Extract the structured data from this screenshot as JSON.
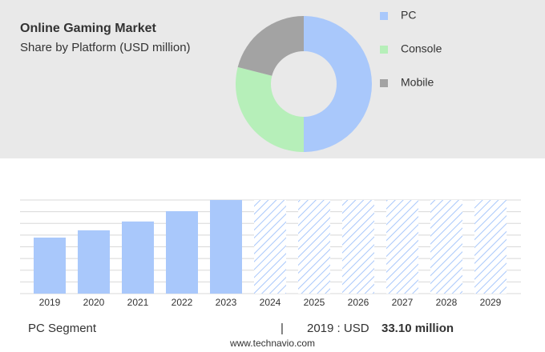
{
  "chart_data": [
    {
      "type": "pie",
      "title": "Online Gaming Market",
      "subtitle": "Share by Platform (USD million)",
      "categories": [
        "PC",
        "Console",
        "Mobile"
      ],
      "values": [
        50,
        29,
        21
      ],
      "colors": [
        "#a9c8fb",
        "#b6efb9",
        "#a3a3a3"
      ]
    },
    {
      "type": "bar",
      "categories": [
        "2019",
        "2020",
        "2021",
        "2022",
        "2023",
        "2024",
        "2025",
        "2026",
        "2027",
        "2028",
        "2029"
      ],
      "values": [
        33.1,
        37.4,
        42.6,
        48.7,
        55.3,
        null,
        null,
        null,
        null,
        null,
        null
      ],
      "color": "#a9c8fb",
      "ylim": [
        0,
        55.3
      ],
      "grid": true,
      "segment": "PC Segment",
      "separator": "|",
      "highlight_label": "2019 : USD",
      "highlight_value": "33.10 million",
      "source": "www.technavio.com"
    }
  ]
}
